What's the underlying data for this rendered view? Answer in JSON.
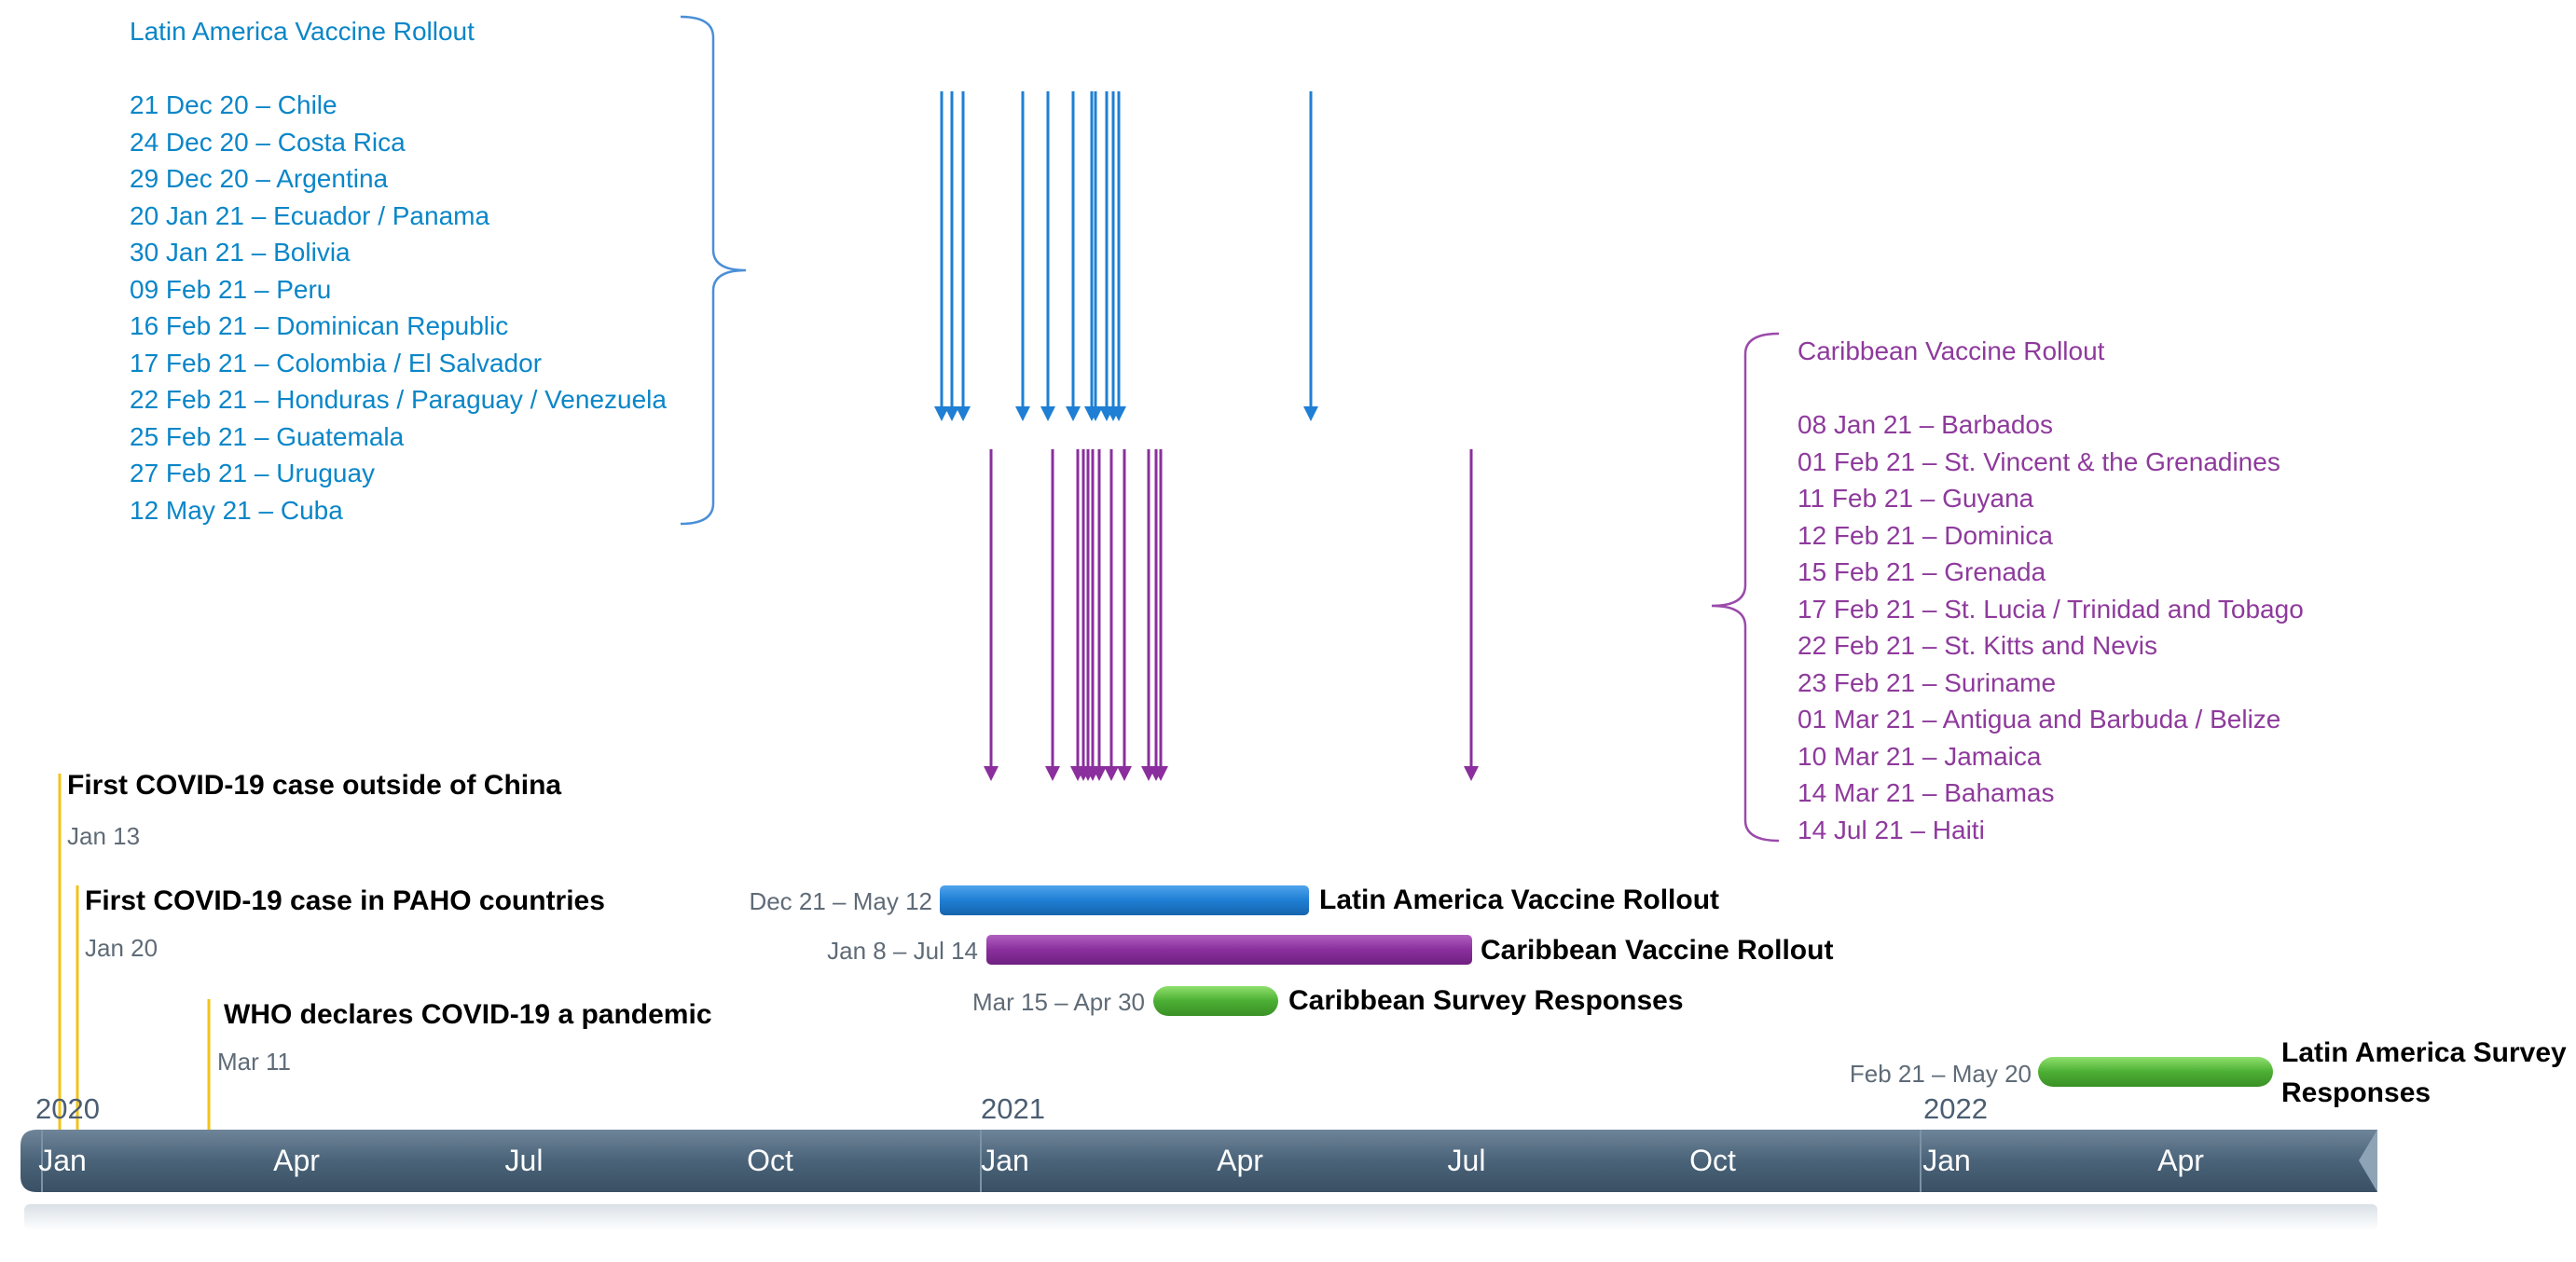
{
  "colors": {
    "latin_america": "#1e7fd4",
    "caribbean": "#8a2f9d",
    "survey": "#4caf34",
    "milestone_line": "#f2c318",
    "axis": "#4a6378"
  },
  "timeline": {
    "years": [
      "2020",
      "2021",
      "2022"
    ],
    "months": [
      "Jan",
      "Apr",
      "Jul",
      "Oct",
      "Jan",
      "Apr",
      "Jul",
      "Oct",
      "Jan",
      "Apr"
    ]
  },
  "milestones": [
    {
      "title": "First COVID-19 case outside of China",
      "date": "Jan 13"
    },
    {
      "title": "First COVID-19 case in PAHO countries",
      "date": "Jan 20"
    },
    {
      "title": "WHO declares COVID-19 a pandemic",
      "date": "Mar 11"
    }
  ],
  "bars": [
    {
      "range": "Dec 21 – May 12",
      "label": "Latin America Vaccine Rollout"
    },
    {
      "range": "Jan 8 – Jul 14",
      "label": "Caribbean Vaccine Rollout"
    },
    {
      "range": "Mar 15 – Apr 30",
      "label": "Caribbean Survey Responses"
    },
    {
      "range": "Feb 21 – May 20",
      "label_line1": "Latin America Survey",
      "label_line2": "Responses"
    }
  ],
  "latin_america": {
    "title": "Latin America Vaccine Rollout",
    "items": [
      "21 Dec 20 – Chile",
      "24 Dec 20 – Costa Rica",
      "29 Dec 20 – Argentina",
      "20 Jan 21 – Ecuador / Panama",
      "30 Jan 21 – Bolivia",
      "09 Feb 21 – Peru",
      "16 Feb 21 – Dominican Republic",
      "17 Feb 21 – Colombia / El Salvador",
      "22 Feb 21 – Honduras / Paraguay / Venezuela",
      "25 Feb 21 – Guatemala",
      "27 Feb 21 – Uruguay",
      "12 May 21 – Cuba"
    ]
  },
  "caribbean": {
    "title": "Caribbean Vaccine Rollout",
    "items": [
      "08 Jan 21 – Barbados",
      "01 Feb 21 – St. Vincent & the Grenadines",
      "11 Feb 21 – Guyana",
      "12 Feb 21 – Dominica",
      "15 Feb 21 – Grenada",
      "17 Feb 21 – St. Lucia / Trinidad and Tobago",
      "22 Feb 21 – St. Kitts and Nevis",
      "23 Feb 21 – Suriname",
      "01 Mar 21 – Antigua and Barbuda / Belize",
      "10 Mar 21 – Jamaica",
      "14 Mar 21 – Bahamas",
      "14 Jul  21 – Haiti"
    ]
  }
}
